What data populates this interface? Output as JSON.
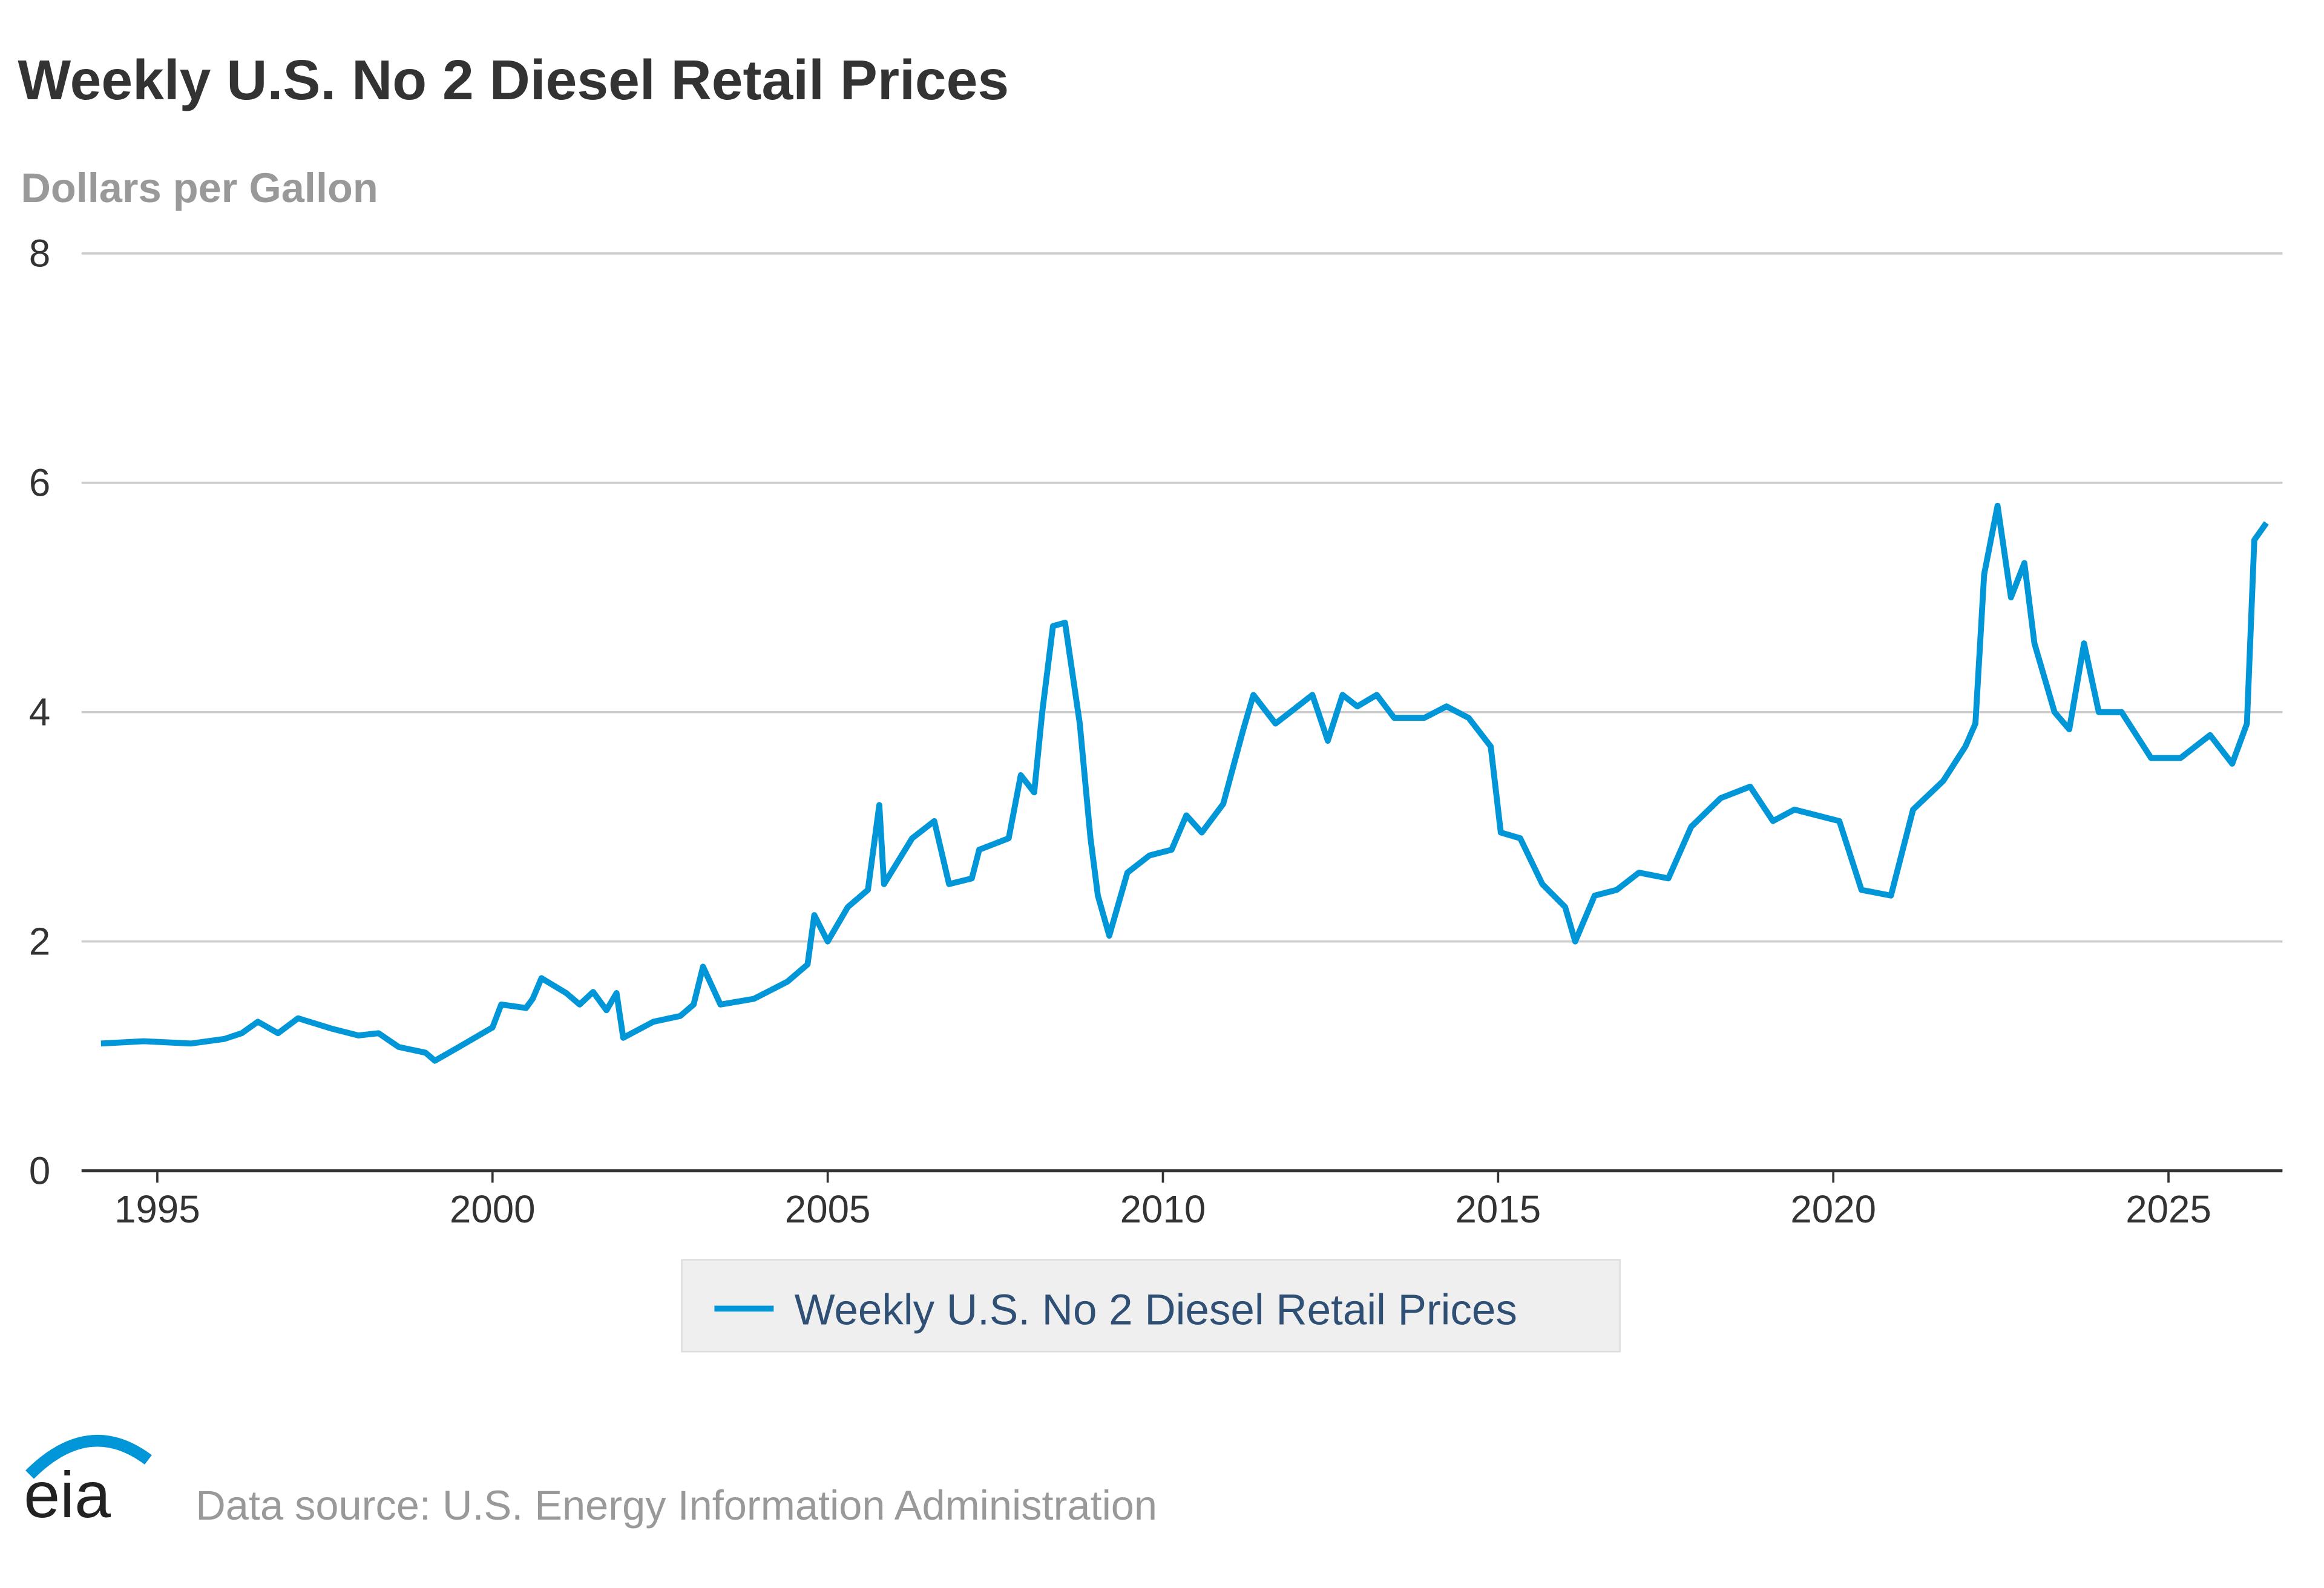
{
  "chart_data": {
    "type": "line",
    "title": "Weekly U.S. No 2 Diesel Retail Prices",
    "y_label": "Dollars per Gallon",
    "x": [
      1994.16,
      1994.8,
      1995.5,
      1996.0,
      1996.26,
      1996.5,
      1996.8,
      1997.1,
      1997.6,
      1998.0,
      1998.3,
      1998.6,
      1999.0,
      1999.14,
      1999.5,
      2000.0,
      2000.13,
      2000.5,
      2000.6,
      2000.73,
      2001.1,
      2001.3,
      2001.5,
      2001.7,
      2001.85,
      2001.95,
      2002.4,
      2002.8,
      2003.0,
      2003.14,
      2003.4,
      2003.9,
      2004.4,
      2004.7,
      2004.8,
      2005.0,
      2005.3,
      2005.6,
      2005.77,
      2005.84,
      2006.26,
      2006.59,
      2006.81,
      2007.15,
      2007.26,
      2007.7,
      2007.88,
      2008.08,
      2008.2,
      2008.36,
      2008.54,
      2008.76,
      2008.92,
      2009.03,
      2009.2,
      2009.47,
      2009.8,
      2010.13,
      2010.35,
      2010.58,
      2010.9,
      2011.2,
      2011.35,
      2011.68,
      2011.9,
      2012.23,
      2012.46,
      2012.68,
      2012.9,
      2013.19,
      2013.45,
      2013.9,
      2014.23,
      2014.56,
      2014.89,
      2015.04,
      2015.33,
      2015.66,
      2016.0,
      2016.15,
      2016.44,
      2016.77,
      2017.1,
      2017.54,
      2017.88,
      2018.32,
      2018.76,
      2019.1,
      2019.42,
      2020.09,
      2020.42,
      2020.86,
      2021.19,
      2021.64,
      2021.97,
      2022.12,
      2022.25,
      2022.45,
      2022.65,
      2022.85,
      2023.0,
      2023.3,
      2023.52,
      2023.74,
      2023.96,
      2024.3,
      2024.74,
      2025.18,
      2025.62,
      2025.95,
      2026.17,
      2026.28,
      2026.46
    ],
    "series": [
      {
        "name": "Weekly U.S. No 2 Diesel Retail Prices",
        "color": "#0096d7",
        "values": [
          1.11,
          1.13,
          1.11,
          1.15,
          1.2,
          1.3,
          1.2,
          1.33,
          1.24,
          1.18,
          1.2,
          1.08,
          1.03,
          0.96,
          1.08,
          1.25,
          1.45,
          1.42,
          1.5,
          1.68,
          1.55,
          1.45,
          1.56,
          1.4,
          1.55,
          1.16,
          1.3,
          1.35,
          1.45,
          1.78,
          1.45,
          1.5,
          1.65,
          1.8,
          2.23,
          2.0,
          2.3,
          2.45,
          3.19,
          2.5,
          2.9,
          3.05,
          2.5,
          2.55,
          2.8,
          2.9,
          3.45,
          3.3,
          4.0,
          4.75,
          4.78,
          3.9,
          2.9,
          2.4,
          2.05,
          2.6,
          2.75,
          2.8,
          3.1,
          2.95,
          3.2,
          3.85,
          4.15,
          3.9,
          4.0,
          4.15,
          3.75,
          4.15,
          4.05,
          4.15,
          3.95,
          3.95,
          4.05,
          3.95,
          3.7,
          2.95,
          2.9,
          2.5,
          2.3,
          2.0,
          2.4,
          2.45,
          2.6,
          2.55,
          3.0,
          3.25,
          3.35,
          3.05,
          3.15,
          3.05,
          2.45,
          2.4,
          3.15,
          3.4,
          3.7,
          3.9,
          5.2,
          5.8,
          5.0,
          5.3,
          4.6,
          4.0,
          3.85,
          4.6,
          4.0,
          4.0,
          3.6,
          3.6,
          3.8,
          3.55,
          3.9,
          5.5,
          5.65
        ]
      }
    ],
    "xlim": [
      1993.87,
      2026.7
    ],
    "xticks": [
      1995,
      2000,
      2005,
      2010,
      2015,
      2020,
      2025
    ],
    "ylim": [
      0,
      8
    ],
    "yticks": [
      0,
      2,
      4,
      6,
      8
    ],
    "grid": true,
    "legend": "bottom"
  },
  "footer": {
    "logo": "eia",
    "source": "Data source: U.S. Energy Information Administration"
  }
}
